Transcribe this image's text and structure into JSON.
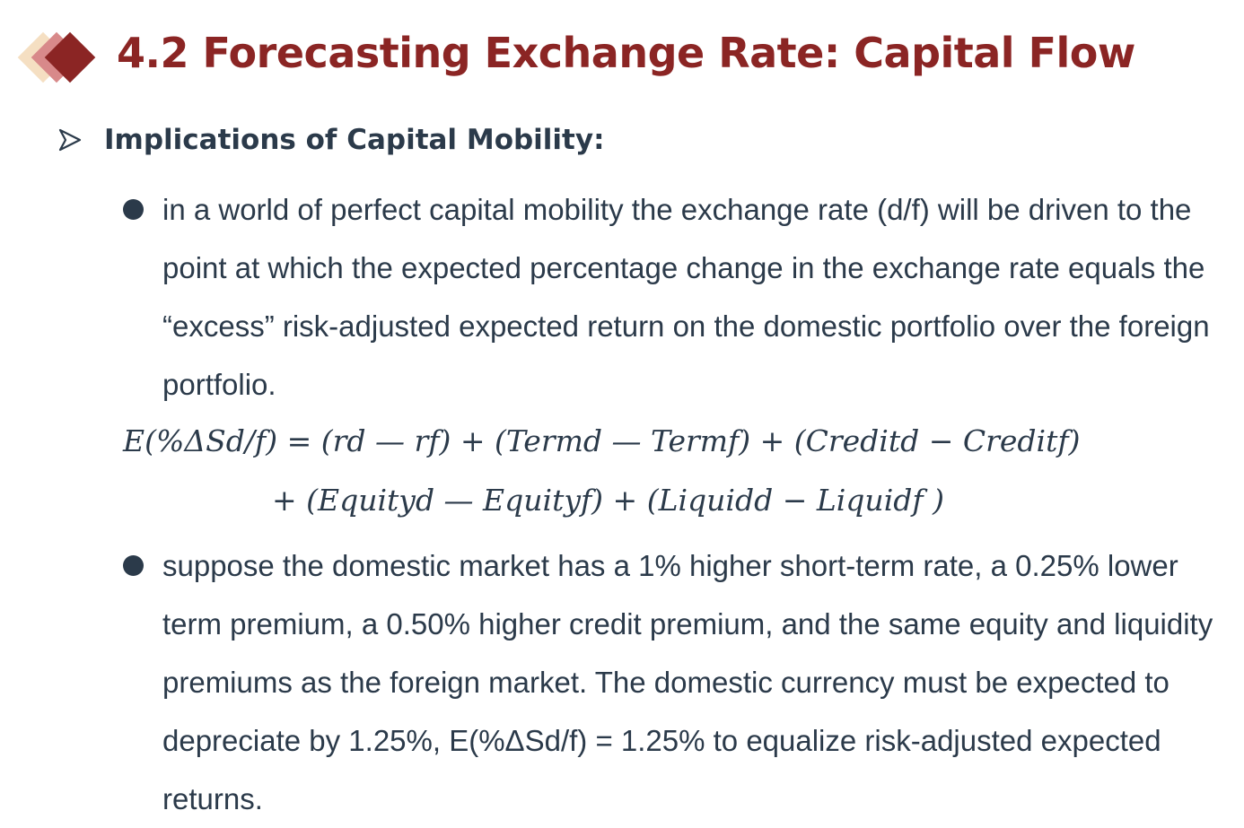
{
  "title": "4.2 Forecasting Exchange Rate: Capital Flow",
  "colors": {
    "title": "#8b2524",
    "text": "#2b3a4a",
    "logo_dark": "#8b2524",
    "logo_mid": "#d8898a",
    "logo_light": "#f5dfc2"
  },
  "icons": {
    "logo": "diamond-logo-icon",
    "section_marker": "arrowhead-icon",
    "bullet": "filled-circle-bullet"
  },
  "section": {
    "heading": "Implications of Capital Mobility:"
  },
  "bullets": [
    {
      "text": "in a world of perfect capital mobility the exchange rate (d/f) will be driven to the point at which the expected percentage change in the exchange rate equals the “excess” risk-adjusted expected return on the domestic portfolio over the foreign portfolio."
    },
    {
      "text": "suppose the domestic market has a 1% higher short-term rate, a 0.25% lower term premium, a 0.50% higher credit premium, and the same equity and liquidity premiums as the foreign market. The domestic currency must be expected to depreciate by 1.25%, E(%ΔSd/f) = 1.25% to equalize risk-adjusted expected returns."
    }
  ],
  "formula": {
    "line1": "E(%ΔSd/f) = (rd — rf) + (Termd — Termf) + (Creditd − Creditf)",
    "line2": "+ (Equityd — Equityf) + (Liquidd − Liquidf )"
  }
}
